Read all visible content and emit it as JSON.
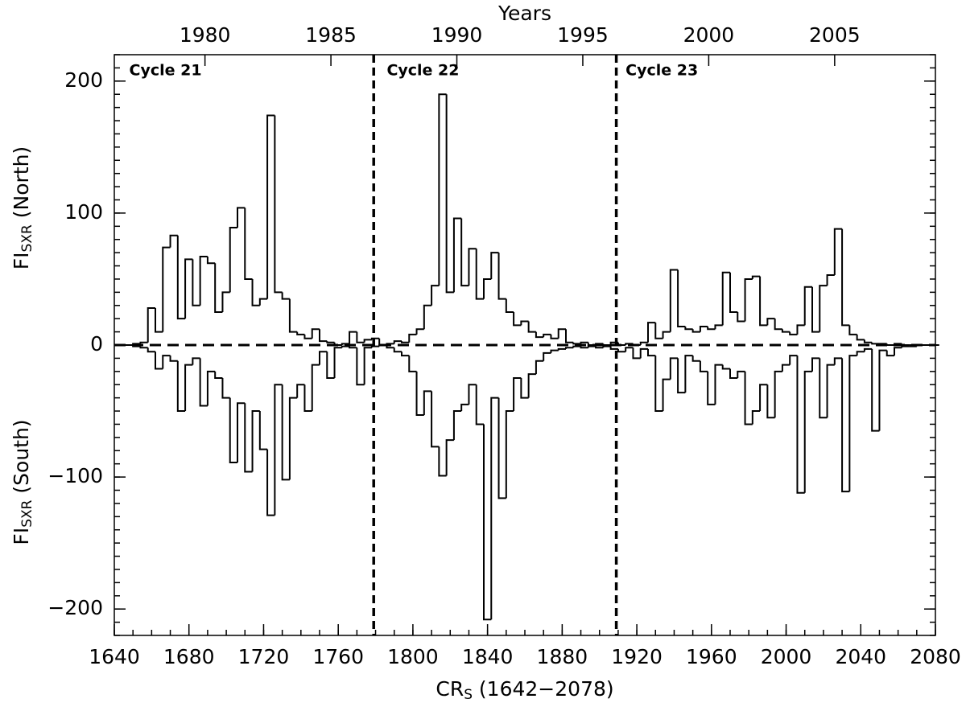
{
  "chart_data": {
    "type": "step",
    "top_axis_label": "Years",
    "xlabel": {
      "main": "CR",
      "sub": "S",
      "suffix": " (1642−2078)"
    },
    "ylabel_top": {
      "main": "FI",
      "sub": "SXR",
      "suffix": " (North)"
    },
    "ylabel_bottom": {
      "main": "FI",
      "sub": "SXR",
      "suffix": " (South)"
    },
    "xlim": [
      1640,
      2080
    ],
    "xticks": [
      1640,
      1680,
      1720,
      1760,
      1800,
      1840,
      1880,
      1920,
      1960,
      2000,
      2040,
      2080
    ],
    "x2lim": [
      1976.4,
      2009.0
    ],
    "x2ticks": [
      1980,
      1985,
      1990,
      1995,
      2000,
      2005
    ],
    "ylim": [
      -220,
      220
    ],
    "yticks": [
      {
        "value": -200,
        "label": "−200"
      },
      {
        "value": -100,
        "label": "−100"
      },
      0,
      100,
      200
    ],
    "x_minor_step": 10,
    "y_minor_step": 10,
    "zero_line": true,
    "cycle_boundaries": [
      1779,
      1909
    ],
    "annotations": [
      {
        "text": "Cycle 21",
        "x": 1648
      },
      {
        "text": "Cycle 22",
        "x": 1786
      },
      {
        "text": "Cycle 23",
        "x": 1914
      }
    ],
    "x": [
      1642,
      1646,
      1650,
      1654,
      1658,
      1662,
      1666,
      1670,
      1674,
      1678,
      1682,
      1686,
      1690,
      1694,
      1698,
      1702,
      1706,
      1710,
      1714,
      1718,
      1722,
      1726,
      1730,
      1734,
      1738,
      1742,
      1746,
      1750,
      1754,
      1758,
      1762,
      1766,
      1770,
      1774,
      1778,
      1782,
      1786,
      1790,
      1794,
      1798,
      1802,
      1806,
      1810,
      1814,
      1818,
      1822,
      1826,
      1830,
      1834,
      1838,
      1842,
      1846,
      1850,
      1854,
      1858,
      1862,
      1866,
      1870,
      1874,
      1878,
      1882,
      1886,
      1890,
      1894,
      1898,
      1902,
      1906,
      1910,
      1914,
      1918,
      1922,
      1926,
      1930,
      1934,
      1938,
      1942,
      1946,
      1950,
      1954,
      1958,
      1962,
      1966,
      1970,
      1974,
      1978,
      1982,
      1986,
      1990,
      1994,
      1998,
      2002,
      2006,
      2010,
      2014,
      2018,
      2022,
      2026,
      2030,
      2034,
      2038,
      2042,
      2046,
      2050,
      2054,
      2058,
      2062,
      2066,
      2070,
      2074,
      2078
    ],
    "series": [
      {
        "color": "#000000",
        "values": [
          0,
          0,
          1,
          2,
          28,
          10,
          74,
          83,
          20,
          65,
          30,
          67,
          62,
          25,
          40,
          89,
          104,
          50,
          30,
          35,
          174,
          40,
          35,
          10,
          8,
          5,
          12,
          3,
          2,
          0,
          1,
          10,
          2,
          4,
          5,
          0,
          1,
          3,
          2,
          8,
          12,
          30,
          45,
          190,
          40,
          96,
          45,
          73,
          35,
          50,
          70,
          35,
          25,
          15,
          18,
          10,
          6,
          8,
          5,
          12,
          2,
          1,
          2,
          0,
          1,
          0,
          2,
          0,
          1,
          0,
          2,
          17,
          5,
          10,
          57,
          14,
          12,
          10,
          14,
          12,
          15,
          55,
          25,
          18,
          50,
          52,
          15,
          20,
          12,
          10,
          8,
          15,
          44,
          10,
          45,
          53,
          88,
          15,
          8,
          4,
          2,
          1,
          1,
          0,
          1,
          0,
          0,
          0,
          0,
          0
        ]
      },
      {
        "color": "#000000",
        "values": [
          0,
          0,
          -1,
          -2,
          -5,
          -18,
          -8,
          -12,
          -50,
          -15,
          -10,
          -46,
          -20,
          -25,
          -40,
          -89,
          -44,
          -96,
          -50,
          -79,
          -129,
          -30,
          -102,
          -40,
          -30,
          -50,
          -15,
          -5,
          -25,
          -2,
          -1,
          -2,
          -30,
          -2,
          -1,
          0,
          -2,
          -5,
          -8,
          -20,
          -53,
          -35,
          -77,
          -99,
          -72,
          -50,
          -45,
          -30,
          -60,
          -208,
          -40,
          -116,
          -50,
          -25,
          -40,
          -22,
          -12,
          -6,
          -4,
          -3,
          -2,
          -1,
          -2,
          -1,
          -2,
          -1,
          -3,
          -5,
          -2,
          -10,
          -3,
          -8,
          -50,
          -26,
          -10,
          -36,
          -8,
          -12,
          -20,
          -45,
          -15,
          -18,
          -25,
          -20,
          -60,
          -50,
          -30,
          -55,
          -20,
          -15,
          -8,
          -112,
          -20,
          -10,
          -55,
          -15,
          -10,
          -111,
          -8,
          -5,
          -3,
          -65,
          -4,
          -8,
          -2,
          -1,
          -1,
          0,
          0,
          0
        ]
      }
    ]
  }
}
